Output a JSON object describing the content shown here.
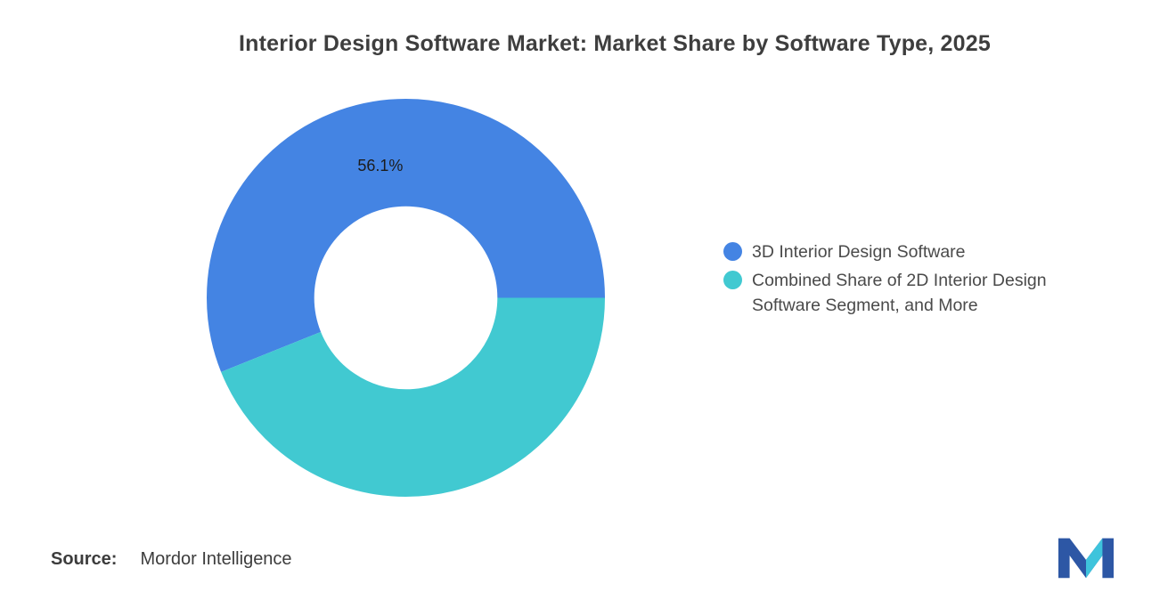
{
  "title": "Interior Design Software Market: Market Share by Software Type, 2025",
  "chart_data": {
    "type": "pie",
    "subtype": "donut",
    "title": "Interior Design Software Market: Market Share by Software Type, 2025",
    "unit": "%",
    "start_angle": "east",
    "direction": "counterclockwise",
    "inner_radius_ratio": 0.46,
    "legend_position": "right",
    "slices": [
      {
        "label": "3D Interior Design Software",
        "value": 56.1,
        "data_label": "56.1%",
        "color": "#4484E3"
      },
      {
        "label": "Combined Share of 2D Interior Design Software Segment, and More",
        "value": 43.9,
        "data_label": "",
        "color": "#41C9D1"
      }
    ]
  },
  "source": {
    "label": "Source:",
    "value": "Mordor Intelligence"
  },
  "logo": {
    "name": "Mordor Intelligence",
    "blue": "#2D57A5",
    "teal": "#3EC4DC"
  }
}
